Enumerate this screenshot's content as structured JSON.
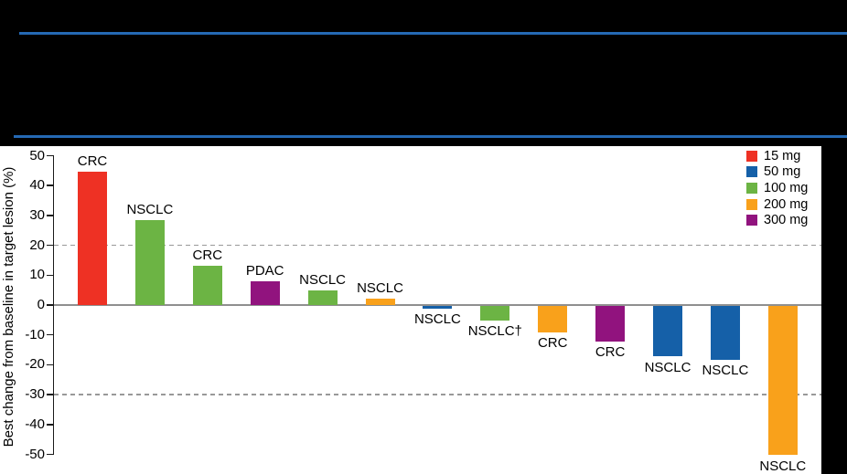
{
  "page": {
    "background_color": "#000000",
    "accent_line_color": "#2569B4",
    "panel_color": "#FFFFFF"
  },
  "chart_data": {
    "type": "bar",
    "subtype": "waterfall",
    "title": "",
    "ylabel": "Best change from baseline in target lesion (%)",
    "ylim": [
      -50,
      50
    ],
    "ytick_step": 10,
    "ytick_labels": [
      "50",
      "40",
      "30",
      "20",
      "10",
      "0",
      "-10",
      "-20",
      "-30",
      "-40",
      "-50"
    ],
    "reference_lines": [
      20,
      -30
    ],
    "reference_line_style": "dashed gray",
    "legend_position": "top-right",
    "legend_title": "",
    "legend": [
      {
        "label": "15 mg",
        "color": "#EE3124"
      },
      {
        "label": "50 mg",
        "color": "#1560A8"
      },
      {
        "label": "100 mg",
        "color": "#6CB444"
      },
      {
        "label": "200 mg",
        "color": "#F9A11B"
      },
      {
        "label": "300 mg",
        "color": "#91137E"
      }
    ],
    "bars": [
      {
        "tumor": "CRC",
        "dose": "15 mg",
        "value": 44.5
      },
      {
        "tumor": "NSCLC",
        "dose": "100 mg",
        "value": 28.5
      },
      {
        "tumor": "CRC",
        "dose": "100 mg",
        "value": 13
      },
      {
        "tumor": "PDAC",
        "dose": "300 mg",
        "value": 8
      },
      {
        "tumor": "NSCLC",
        "dose": "100 mg",
        "value": 5
      },
      {
        "tumor": "NSCLC",
        "dose": "200 mg",
        "value": 2
      },
      {
        "tumor": "NSCLC",
        "dose": "50 mg",
        "value": -1
      },
      {
        "tumor": "NSCLC†",
        "dose": "100 mg",
        "value": -5
      },
      {
        "tumor": "CRC",
        "dose": "200 mg",
        "value": -9
      },
      {
        "tumor": "CRC",
        "dose": "300 mg",
        "value": -12
      },
      {
        "tumor": "NSCLC",
        "dose": "50 mg",
        "value": -17
      },
      {
        "tumor": "NSCLC",
        "dose": "50 mg",
        "value": -18
      },
      {
        "tumor": "NSCLC",
        "dose": "200 mg",
        "value": -50
      }
    ]
  }
}
